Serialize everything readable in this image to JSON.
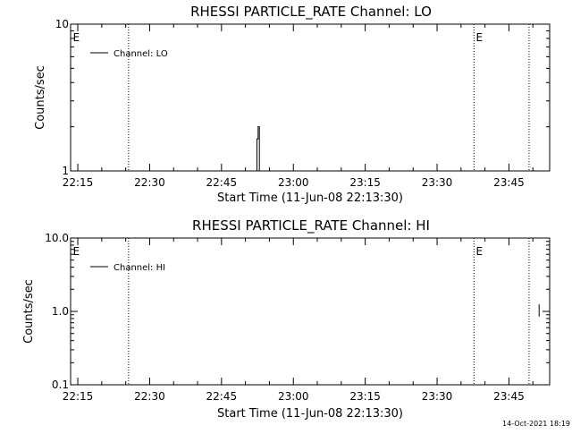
{
  "timestamp": "14-Oct-2021 18:19",
  "chart_data": [
    {
      "type": "line",
      "title": "RHESSI PARTICLE_RATE Channel: LO",
      "xlabel": "Start Time (11-Jun-08 22:13:30)",
      "ylabel": "Counts/sec",
      "x_ticks": [
        "22:15",
        "22:30",
        "22:45",
        "23:00",
        "23:15",
        "23:30",
        "23:45"
      ],
      "x_tick_minutes": [
        1.5,
        16.5,
        31.5,
        46.5,
        61.5,
        76.5,
        91.5
      ],
      "x_range_minutes": [
        0,
        100
      ],
      "y_scale": "log",
      "ylim": [
        1,
        10
      ],
      "y_ticks": [
        "1",
        "10"
      ],
      "y_tick_values": [
        1,
        10
      ],
      "grid": false,
      "legend": {
        "position": "top-left",
        "entries": [
          "Channel: LO"
        ]
      },
      "eclipse_marker": "E",
      "eclipse_lines_minutes": [
        12.1,
        84.2,
        95.7
      ],
      "eclipse_markers_minutes": [
        0.5,
        84.6
      ],
      "series": [
        {
          "name": "Channel: LO",
          "x_minutes": [
            38.9,
            38.9,
            39.15,
            39.15,
            39.4,
            39.4
          ],
          "y": [
            1,
            1.65,
            1.65,
            2.0,
            2.0,
            1
          ]
        }
      ]
    },
    {
      "type": "line",
      "title": "RHESSI PARTICLE_RATE Channel: HI",
      "xlabel": "Start Time (11-Jun-08 22:13:30)",
      "ylabel": "Counts/sec",
      "x_ticks": [
        "22:15",
        "22:30",
        "22:45",
        "23:00",
        "23:15",
        "23:30",
        "23:45"
      ],
      "x_tick_minutes": [
        1.5,
        16.5,
        31.5,
        46.5,
        61.5,
        76.5,
        91.5
      ],
      "x_range_minutes": [
        0,
        100
      ],
      "y_scale": "log",
      "ylim": [
        0.1,
        10
      ],
      "y_ticks": [
        "0.1",
        "1.0",
        "10.0"
      ],
      "y_tick_values": [
        0.1,
        1,
        10
      ],
      "grid": false,
      "legend": {
        "position": "top-left",
        "entries": [
          "Channel: HI"
        ]
      },
      "eclipse_marker": "E",
      "eclipse_lines_minutes": [
        12.1,
        84.2,
        95.7
      ],
      "eclipse_markers_minutes": [
        0.5,
        84.6
      ],
      "series": [
        {
          "name": "Channel: HI",
          "x_minutes": [
            97.8,
            97.8
          ],
          "y": [
            0.85,
            1.25
          ]
        }
      ]
    }
  ]
}
